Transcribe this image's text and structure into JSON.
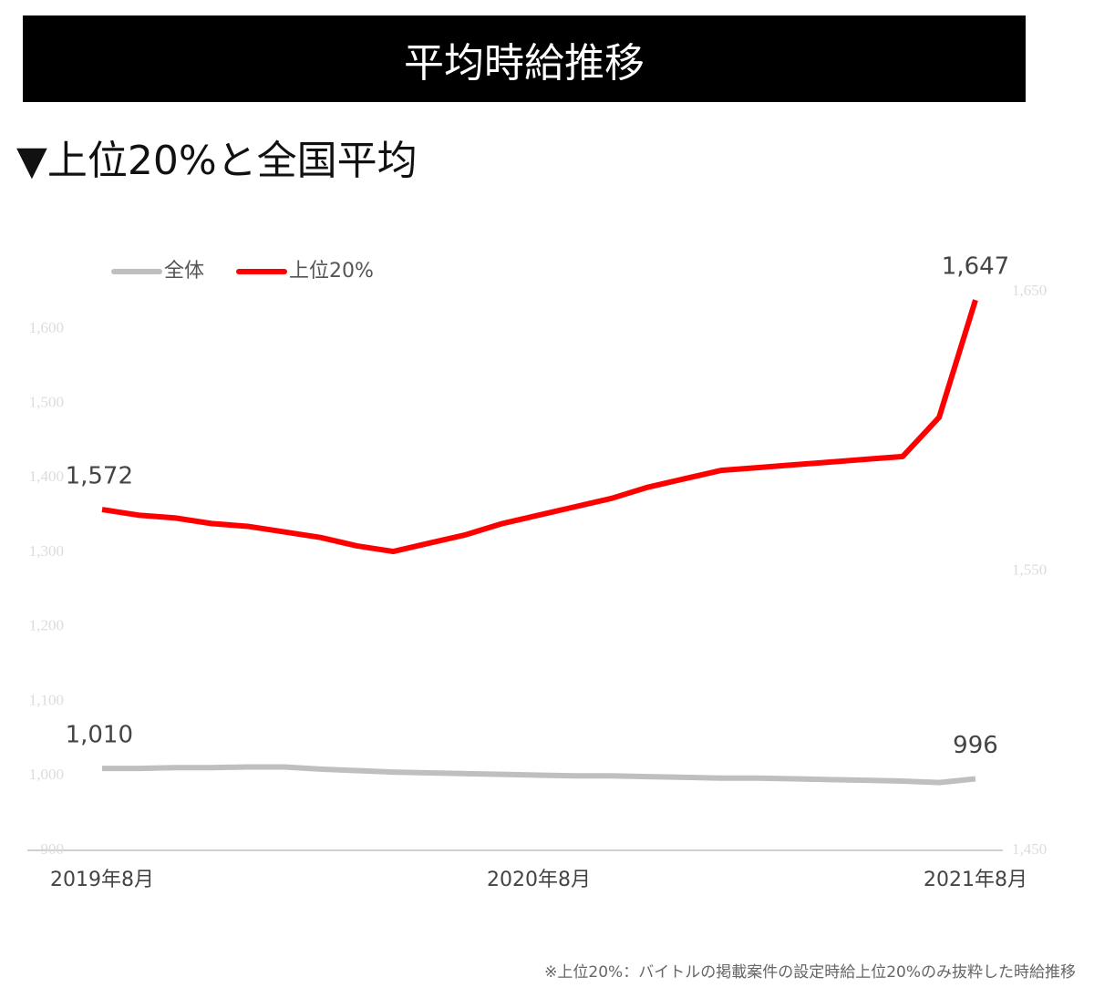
{
  "chart_data": {
    "type": "line",
    "title": "平均時給推移",
    "subtitle": "▼上位20%と全国平均",
    "note": "※上位20%：バイトルの掲載案件の設定時給上位20%のみ抜粋した時給推移",
    "categories": [
      "2019年8月",
      null,
      null,
      null,
      null,
      null,
      null,
      null,
      null,
      null,
      null,
      null,
      "2020年8月",
      null,
      null,
      null,
      null,
      null,
      null,
      null,
      null,
      null,
      null,
      null,
      "2021年8月"
    ],
    "series": [
      {
        "name": "全体",
        "color": "#bfbfbf",
        "axis": "y",
        "values": [
          1010,
          1010,
          1011,
          1011,
          1012,
          1012,
          1009,
          1007,
          1005,
          1004,
          1003,
          1002,
          1001,
          1000,
          1000,
          999,
          998,
          997,
          997,
          996,
          995,
          994,
          993,
          991,
          996
        ],
        "value_labels": [
          "1,010",
          null,
          null,
          null,
          null,
          null,
          null,
          null,
          null,
          null,
          null,
          null,
          null,
          null,
          null,
          null,
          null,
          null,
          null,
          null,
          null,
          null,
          null,
          null,
          "996"
        ]
      },
      {
        "name": "上位20%",
        "color": "#ff0000",
        "axis": "y2",
        "values": [
          1572,
          1570,
          1569,
          1567,
          1566,
          1564,
          1562,
          1559,
          1557,
          1560,
          1563,
          1567,
          1570,
          1573,
          1576,
          1580,
          1583,
          1586,
          1587,
          1588,
          1589,
          1590,
          1591,
          1605,
          1647
        ],
        "value_labels": [
          "1,572",
          null,
          null,
          null,
          null,
          null,
          null,
          null,
          null,
          null,
          null,
          null,
          null,
          null,
          null,
          null,
          null,
          null,
          null,
          null,
          null,
          null,
          null,
          null,
          "1,647"
        ]
      }
    ],
    "ylim": [
      900,
      1650
    ],
    "yticks": [
      900,
      {
        "value": 1000,
        "label": "1,000"
      },
      {
        "value": 1100,
        "label": "1,100"
      },
      {
        "value": 1200,
        "label": "1,200"
      },
      {
        "value": 1300,
        "label": "1,300"
      },
      {
        "value": 1400,
        "label": "1,400"
      },
      {
        "value": 1500,
        "label": "1,500"
      },
      {
        "value": 1600,
        "label": "1,600"
      }
    ],
    "y2lim": [
      1450,
      1650
    ],
    "y2ticks": [
      {
        "value": 1450,
        "label": "1,450"
      },
      {
        "value": 1550,
        "label": "1,550"
      },
      {
        "value": 1650,
        "label": "1,650"
      }
    ],
    "legend": "top-left"
  }
}
